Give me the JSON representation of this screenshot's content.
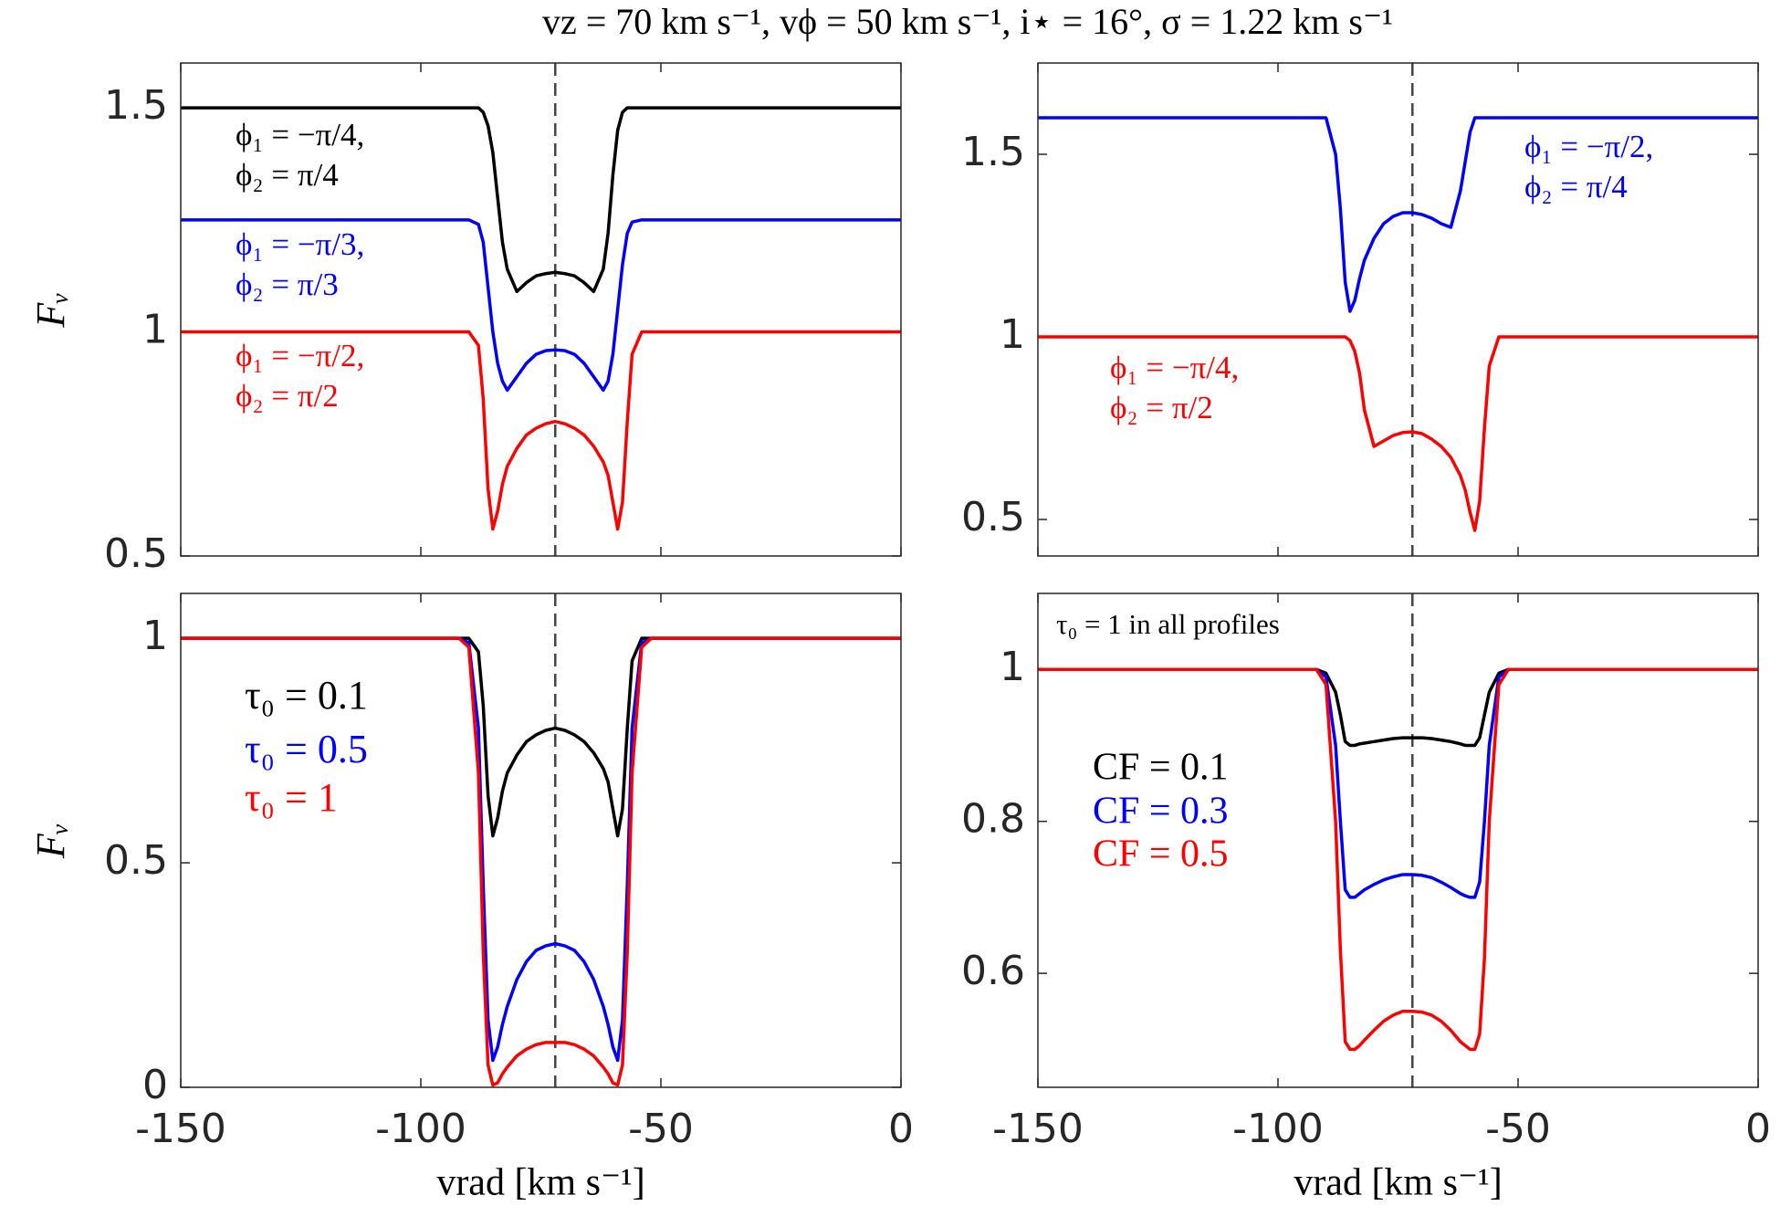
{
  "title": "vz = 70 km s⁻¹, vϕ = 50 km s⁻¹, i⋆ = 16°, σ = 1.22 km s⁻¹",
  "chart_data": [
    {
      "type": "line",
      "ylabel": "Fᵥ",
      "vline": -72,
      "xlim": [
        -150,
        0
      ],
      "ylim": [
        0.5,
        1.6
      ],
      "xticks": [
        -150,
        -100,
        -50,
        0
      ],
      "yticks": [
        0.5,
        1,
        1.5
      ],
      "show_xticklabels": false,
      "x": [
        -150,
        -92,
        -90,
        -88,
        -87,
        -86,
        -85,
        -84,
        -83,
        -82,
        -80,
        -78,
        -76,
        -74,
        -72,
        -70,
        -68,
        -66,
        -64,
        -62,
        -61,
        -60,
        -59,
        -58,
        -57,
        -56,
        -54,
        -52,
        0
      ],
      "series": [
        {
          "name": [
            "ϕ₁ = −π/4,",
            "ϕ₂ = π/4"
          ],
          "color": "#000000",
          "values": [
            1.5,
            1.5,
            1.5,
            1.5,
            1.49,
            1.46,
            1.4,
            1.3,
            1.2,
            1.14,
            1.09,
            1.11,
            1.125,
            1.13,
            1.133,
            1.13,
            1.125,
            1.11,
            1.09,
            1.14,
            1.22,
            1.35,
            1.45,
            1.49,
            1.5,
            1.5,
            1.5,
            1.5,
            1.5
          ]
        },
        {
          "name": [
            "ϕ₁ = −π/3,",
            "ϕ₂ = π/3"
          ],
          "color": "#0000ff",
          "values": [
            1.25,
            1.25,
            1.25,
            1.24,
            1.2,
            1.1,
            1.0,
            0.93,
            0.89,
            0.87,
            0.9,
            0.93,
            0.95,
            0.958,
            0.96,
            0.958,
            0.95,
            0.93,
            0.9,
            0.87,
            0.89,
            0.95,
            1.05,
            1.15,
            1.22,
            1.245,
            1.25,
            1.25,
            1.25
          ]
        },
        {
          "name": [
            "ϕ₁ = −π/2,",
            "ϕ₂ = π/2"
          ],
          "color": "#ff0000",
          "values": [
            1,
            1,
            1,
            0.97,
            0.85,
            0.65,
            0.56,
            0.6,
            0.66,
            0.7,
            0.74,
            0.77,
            0.785,
            0.795,
            0.8,
            0.795,
            0.785,
            0.77,
            0.745,
            0.71,
            0.68,
            0.62,
            0.56,
            0.62,
            0.8,
            0.95,
            1,
            1,
            1
          ]
        }
      ]
    },
    {
      "type": "line",
      "vline": -72,
      "xlim": [
        -150,
        0
      ],
      "ylim": [
        0.4,
        1.75
      ],
      "xticks": [
        -150,
        -100,
        -50,
        0
      ],
      "yticks": [
        0.5,
        1,
        1.5
      ],
      "show_xticklabels": false,
      "x": [
        -150,
        -92,
        -90,
        -88,
        -87,
        -86,
        -85,
        -84,
        -83,
        -82,
        -80,
        -78,
        -76,
        -74,
        -72,
        -70,
        -68,
        -66,
        -64,
        -62,
        -61,
        -60,
        -59,
        -58,
        -57,
        -56,
        -54,
        -52,
        0
      ],
      "series": [
        {
          "name": [
            "ϕ₁ = −π/2,",
            "ϕ₂ = π/4"
          ],
          "color": "#0000ff",
          "values": [
            1.6,
            1.6,
            1.6,
            1.5,
            1.35,
            1.15,
            1.07,
            1.1,
            1.16,
            1.21,
            1.27,
            1.31,
            1.33,
            1.34,
            1.34,
            1.335,
            1.325,
            1.31,
            1.3,
            1.4,
            1.48,
            1.56,
            1.6,
            1.6,
            1.6,
            1.6,
            1.6,
            1.6,
            1.6
          ]
        },
        {
          "name": [
            "ϕ₁ = −π/4,",
            "ϕ₂ = π/2"
          ],
          "color": "#ff0000",
          "values": [
            1,
            1,
            1,
            1,
            1,
            1,
            0.99,
            0.96,
            0.9,
            0.8,
            0.7,
            0.715,
            0.73,
            0.738,
            0.74,
            0.735,
            0.72,
            0.7,
            0.67,
            0.62,
            0.58,
            0.52,
            0.47,
            0.55,
            0.75,
            0.92,
            1,
            1,
            1
          ]
        }
      ]
    },
    {
      "type": "line",
      "ylabel": "Fᵥ",
      "xlabel": "vrad [km s⁻¹]",
      "vline": -72,
      "xlim": [
        -150,
        0
      ],
      "ylim": [
        0,
        1.1
      ],
      "xticks": [
        -150,
        -100,
        -50,
        0
      ],
      "yticks": [
        0,
        0.5,
        1
      ],
      "show_xticklabels": true,
      "x": [
        -150,
        -92,
        -90,
        -88,
        -87,
        -86,
        -85,
        -84,
        -83,
        -82,
        -80,
        -78,
        -76,
        -74,
        -72,
        -70,
        -68,
        -66,
        -64,
        -62,
        -61,
        -60,
        -59,
        -58,
        -57,
        -56,
        -54,
        -52,
        0
      ],
      "series": [
        {
          "name": "τ₀ = 0.1",
          "color": "#000000",
          "values": [
            1,
            1,
            1,
            0.97,
            0.85,
            0.65,
            0.56,
            0.6,
            0.66,
            0.7,
            0.74,
            0.77,
            0.785,
            0.795,
            0.8,
            0.795,
            0.785,
            0.77,
            0.745,
            0.71,
            0.68,
            0.62,
            0.56,
            0.62,
            0.8,
            0.95,
            1,
            1,
            1
          ]
        },
        {
          "name": "τ₀ = 0.5",
          "color": "#0000ff",
          "values": [
            1,
            1,
            0.99,
            0.8,
            0.45,
            0.15,
            0.06,
            0.09,
            0.14,
            0.18,
            0.24,
            0.28,
            0.305,
            0.315,
            0.32,
            0.315,
            0.305,
            0.28,
            0.24,
            0.18,
            0.14,
            0.09,
            0.06,
            0.15,
            0.45,
            0.8,
            0.99,
            1,
            1
          ]
        },
        {
          "name": "τ₀ = 1",
          "color": "#ff0000",
          "values": [
            1,
            1,
            0.98,
            0.7,
            0.3,
            0.05,
            0.005,
            0.01,
            0.03,
            0.045,
            0.07,
            0.085,
            0.095,
            0.1,
            0.1,
            0.1,
            0.095,
            0.085,
            0.07,
            0.045,
            0.03,
            0.01,
            0.005,
            0.05,
            0.3,
            0.7,
            0.98,
            1,
            1
          ]
        }
      ]
    },
    {
      "type": "line",
      "xlabel": "vrad [km s⁻¹]",
      "annotation": "τ₀ = 1 in all profiles",
      "vline": -72,
      "xlim": [
        -150,
        0
      ],
      "ylim": [
        0.45,
        1.1
      ],
      "xticks": [
        -150,
        -100,
        -50,
        0
      ],
      "yticks": [
        0.6,
        0.8,
        1
      ],
      "show_xticklabels": true,
      "x": [
        -150,
        -92,
        -90,
        -88,
        -87,
        -86,
        -85,
        -84,
        -83,
        -82,
        -80,
        -78,
        -76,
        -74,
        -72,
        -70,
        -68,
        -66,
        -64,
        -62,
        -61,
        -60,
        -59,
        -58,
        -57,
        -56,
        -54,
        -52,
        0
      ],
      "series": [
        {
          "name": "CF = 0.1",
          "color": "#000000",
          "values": [
            1,
            1,
            0.995,
            0.97,
            0.94,
            0.905,
            0.9,
            0.9,
            0.902,
            0.903,
            0.905,
            0.907,
            0.909,
            0.91,
            0.91,
            0.91,
            0.909,
            0.907,
            0.905,
            0.902,
            0.9,
            0.9,
            0.9,
            0.91,
            0.94,
            0.97,
            0.995,
            1,
            1
          ]
        },
        {
          "name": "CF = 0.3",
          "color": "#0000ff",
          "values": [
            1,
            1,
            0.99,
            0.9,
            0.8,
            0.71,
            0.7,
            0.7,
            0.705,
            0.71,
            0.717,
            0.723,
            0.727,
            0.73,
            0.73,
            0.729,
            0.726,
            0.72,
            0.713,
            0.705,
            0.702,
            0.7,
            0.7,
            0.72,
            0.8,
            0.9,
            0.99,
            1,
            1
          ]
        },
        {
          "name": "CF = 0.5",
          "color": "#ff0000",
          "values": [
            1,
            1,
            0.98,
            0.8,
            0.63,
            0.51,
            0.5,
            0.5,
            0.505,
            0.512,
            0.525,
            0.537,
            0.545,
            0.55,
            0.55,
            0.549,
            0.545,
            0.537,
            0.525,
            0.51,
            0.505,
            0.5,
            0.5,
            0.52,
            0.62,
            0.8,
            0.98,
            1,
            1
          ]
        }
      ]
    }
  ]
}
